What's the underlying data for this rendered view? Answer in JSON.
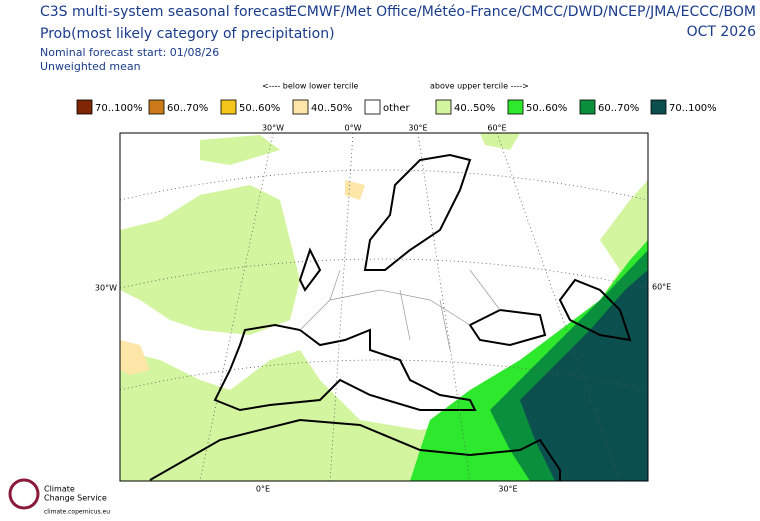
{
  "header": {
    "title": "C3S multi-system seasonal forecast",
    "subtitle": "Prob(most likely category of precipitation)",
    "models": "ECMWF/Met Office/Météo-France/CMCC/DWD/NCEP/JMA/ECCC/BOM",
    "month": "OCT 2026",
    "start": "Nominal forecast start: 01/08/26",
    "mean": "Unweighted mean"
  },
  "legend": {
    "below_label": "<---- below lower tercile",
    "above_label": "above upper tercile ---->",
    "items": [
      {
        "label": "70..100%",
        "color": "#7f2704"
      },
      {
        "label": "60..70%",
        "color": "#cc7a1a"
      },
      {
        "label": "50..60%",
        "color": "#f5c518"
      },
      {
        "label": "40..50%",
        "color": "#fde6a8"
      },
      {
        "label": "other",
        "color": "#ffffff"
      },
      {
        "label": "40..50%",
        "color": "#d4f5a0"
      },
      {
        "label": "50..60%",
        "color": "#2ee82e"
      },
      {
        "label": "60..70%",
        "color": "#0a8f3c"
      },
      {
        "label": "70..100%",
        "color": "#0b4f4f"
      }
    ]
  },
  "map": {
    "top_labels": [
      "30°W",
      "0°W",
      "30°E",
      "60°E"
    ],
    "left_label": "30°W",
    "right_label": "60°E",
    "bottom_labels": [
      "0°E",
      "30°E"
    ]
  },
  "logo": {
    "lines": [
      "Climate",
      "Change Service"
    ],
    "url": "climate.copernicus.eu"
  }
}
